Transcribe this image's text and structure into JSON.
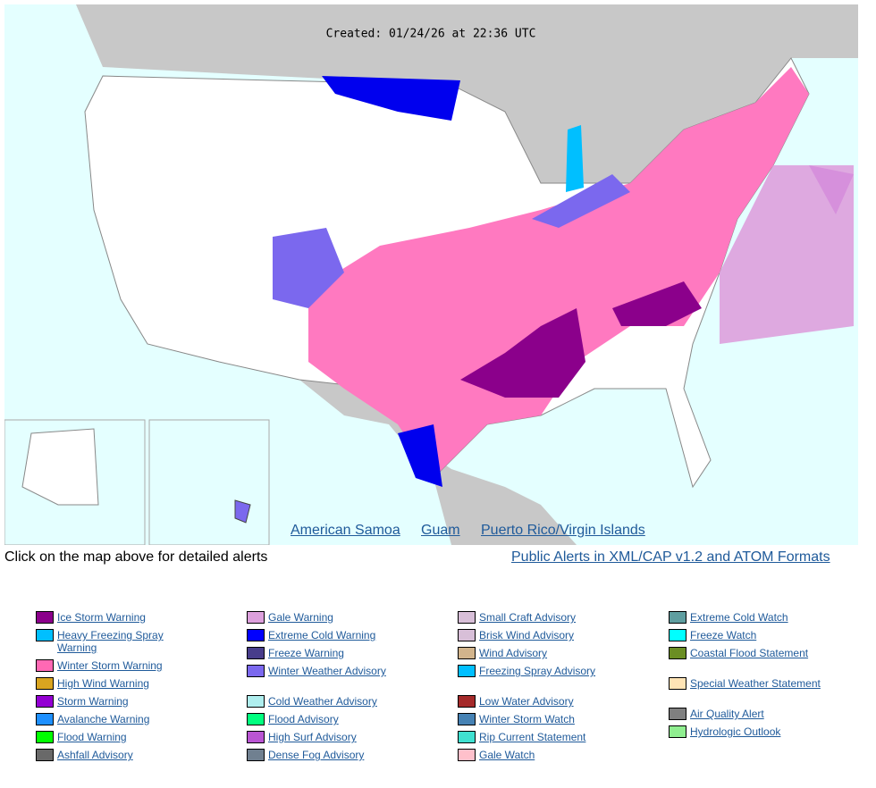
{
  "map": {
    "created": "Created: 01/24/26 at 22:36 UTC",
    "links": [
      "American Samoa",
      "Guam",
      "Puerto Rico/Virgin Islands"
    ]
  },
  "instructions": "Click on the map above for detailed alerts",
  "formats_link": "Public Alerts in XML/CAP v1.2 and ATOM Formats",
  "legend": {
    "columns": [
      [
        {
          "label": "Ice Storm Warning",
          "color": "#8b008b"
        },
        {
          "label": "Heavy Freezing Spray Warning",
          "color": "#00bfff"
        },
        {
          "label": "Winter Storm Warning",
          "color": "#ff69b4"
        },
        {
          "label": "High Wind Warning",
          "color": "#daa520"
        },
        {
          "label": "Storm Warning",
          "color": "#9400d3"
        },
        {
          "label": "Avalanche Warning",
          "color": "#1e90ff"
        },
        {
          "label": "Flood Warning",
          "color": "#00ff00"
        },
        {
          "label": "Ashfall Advisory",
          "color": "#696969"
        }
      ],
      [
        {
          "label": "Gale Warning",
          "color": "#dda0dd"
        },
        {
          "label": "Extreme Cold Warning",
          "color": "#0000ff"
        },
        {
          "label": "Freeze Warning",
          "color": "#483d8b"
        },
        {
          "label": "Winter Weather Advisory",
          "color": "#7b68ee"
        },
        {
          "label": "Cold Weather Advisory",
          "color": "#afeeee"
        },
        {
          "label": "Flood Advisory",
          "color": "#00ff7f"
        },
        {
          "label": "High Surf Advisory",
          "color": "#ba55d3"
        },
        {
          "label": "Dense Fog Advisory",
          "color": "#708090"
        }
      ],
      [
        {
          "label": "Small Craft Advisory",
          "color": "#d8bfd8"
        },
        {
          "label": "Brisk Wind Advisory",
          "color": "#d8bfd8"
        },
        {
          "label": "Wind Advisory",
          "color": "#d2b48c"
        },
        {
          "label": "Freezing Spray Advisory",
          "color": "#00bfff"
        },
        {
          "label": "Low Water Advisory",
          "color": "#a52a2a"
        },
        {
          "label": "Winter Storm Watch",
          "color": "#4682b4"
        },
        {
          "label": "Rip Current Statement",
          "color": "#40e0d0"
        },
        {
          "label": "Gale Watch",
          "color": "#ffc0cb"
        }
      ],
      [
        {
          "label": "Extreme Cold Watch",
          "color": "#5f9ea0"
        },
        {
          "label": "Freeze Watch",
          "color": "#00ffff"
        },
        {
          "label": "Coastal Flood Statement",
          "color": "#6b8e23"
        },
        {
          "label": "Special Weather Statement",
          "color": "#ffe4b5"
        },
        {
          "label": "Air Quality Alert",
          "color": "#808080"
        },
        {
          "label": "Hydrologic Outlook",
          "color": "#90ee90"
        }
      ]
    ]
  }
}
